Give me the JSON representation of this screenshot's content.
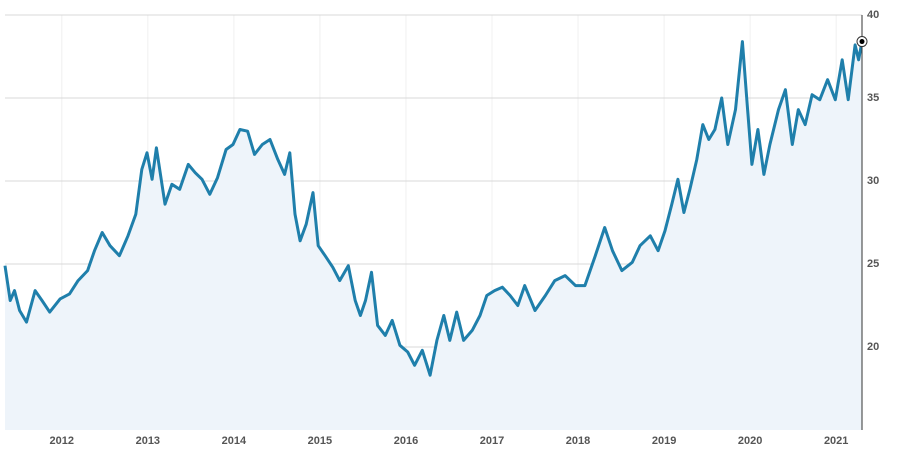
{
  "chart_data": {
    "type": "line",
    "x": [
      2011.34,
      2011.4,
      2011.45,
      2011.51,
      2011.59,
      2011.69,
      2011.77,
      2011.86,
      2011.98,
      2012.09,
      2012.19,
      2012.3,
      2012.38,
      2012.47,
      2012.56,
      2012.67,
      2012.77,
      2012.86,
      2012.93,
      2012.99,
      2013.05,
      2013.1,
      2013.2,
      2013.28,
      2013.37,
      2013.47,
      2013.55,
      2013.63,
      2013.72,
      2013.81,
      2013.91,
      2013.99,
      2014.07,
      2014.16,
      2014.24,
      2014.33,
      2014.42,
      2014.51,
      2014.59,
      2014.65,
      2014.71,
      2014.77,
      2014.84,
      2014.92,
      2014.98,
      2015.06,
      2015.15,
      2015.23,
      2015.33,
      2015.41,
      2015.47,
      2015.53,
      2015.6,
      2015.67,
      2015.76,
      2015.84,
      2015.93,
      2016.02,
      2016.1,
      2016.19,
      2016.28,
      2016.36,
      2016.44,
      2016.51,
      2016.59,
      2016.67,
      2016.77,
      2016.86,
      2016.94,
      2017.03,
      2017.12,
      2017.21,
      2017.3,
      2017.38,
      2017.5,
      2017.62,
      2017.73,
      2017.85,
      2017.97,
      2018.08,
      2018.2,
      2018.31,
      2018.4,
      2018.51,
      2018.63,
      2018.72,
      2018.84,
      2018.93,
      2019.01,
      2019.09,
      2019.16,
      2019.23,
      2019.3,
      2019.38,
      2019.45,
      2019.52,
      2019.59,
      2019.67,
      2019.74,
      2019.83,
      2019.91,
      2019.97,
      2020.02,
      2020.09,
      2020.16,
      2020.23,
      2020.33,
      2020.41,
      2020.49,
      2020.56,
      2020.64,
      2020.72,
      2020.81,
      2020.9,
      2020.99,
      2021.07,
      2021.14,
      2021.22,
      2021.26,
      2021.3
    ],
    "values": [
      24.9,
      22.8,
      23.4,
      22.2,
      21.5,
      23.4,
      22.8,
      22.1,
      22.9,
      23.2,
      24.0,
      24.6,
      25.8,
      26.9,
      26.1,
      25.5,
      26.7,
      28.0,
      30.7,
      31.7,
      30.1,
      32.0,
      28.6,
      29.8,
      29.5,
      31.0,
      30.5,
      30.1,
      29.2,
      30.2,
      31.9,
      32.2,
      33.1,
      33.0,
      31.6,
      32.2,
      32.5,
      31.3,
      30.4,
      31.7,
      28.0,
      26.4,
      27.4,
      29.3,
      26.1,
      25.5,
      24.8,
      24.0,
      24.9,
      22.8,
      21.9,
      22.8,
      24.5,
      21.3,
      20.7,
      21.6,
      20.1,
      19.7,
      18.9,
      19.8,
      18.3,
      20.4,
      21.9,
      20.4,
      22.1,
      20.4,
      21.0,
      21.9,
      23.1,
      23.4,
      23.6,
      23.1,
      22.5,
      23.7,
      22.2,
      23.1,
      24.0,
      24.3,
      23.7,
      23.7,
      25.5,
      27.2,
      25.8,
      24.6,
      25.1,
      26.1,
      26.7,
      25.8,
      27.0,
      28.6,
      30.1,
      28.1,
      29.5,
      31.3,
      33.4,
      32.5,
      33.1,
      35.0,
      32.2,
      34.3,
      38.4,
      34.3,
      31.0,
      33.1,
      30.4,
      32.2,
      34.3,
      35.5,
      32.2,
      34.3,
      33.4,
      35.2,
      34.9,
      36.1,
      34.9,
      37.3,
      34.9,
      38.2,
      37.3,
      38.4
    ],
    "color": "#1f7fab",
    "xlim": [
      2011.34,
      2021.3
    ],
    "xticks": [
      2012,
      2013,
      2014,
      2015,
      2016,
      2017,
      2018,
      2019,
      2020,
      2021
    ],
    "ylim": [
      15,
      40
    ],
    "yticks": [
      20,
      25,
      30,
      35,
      40
    ],
    "grid": true
  }
}
